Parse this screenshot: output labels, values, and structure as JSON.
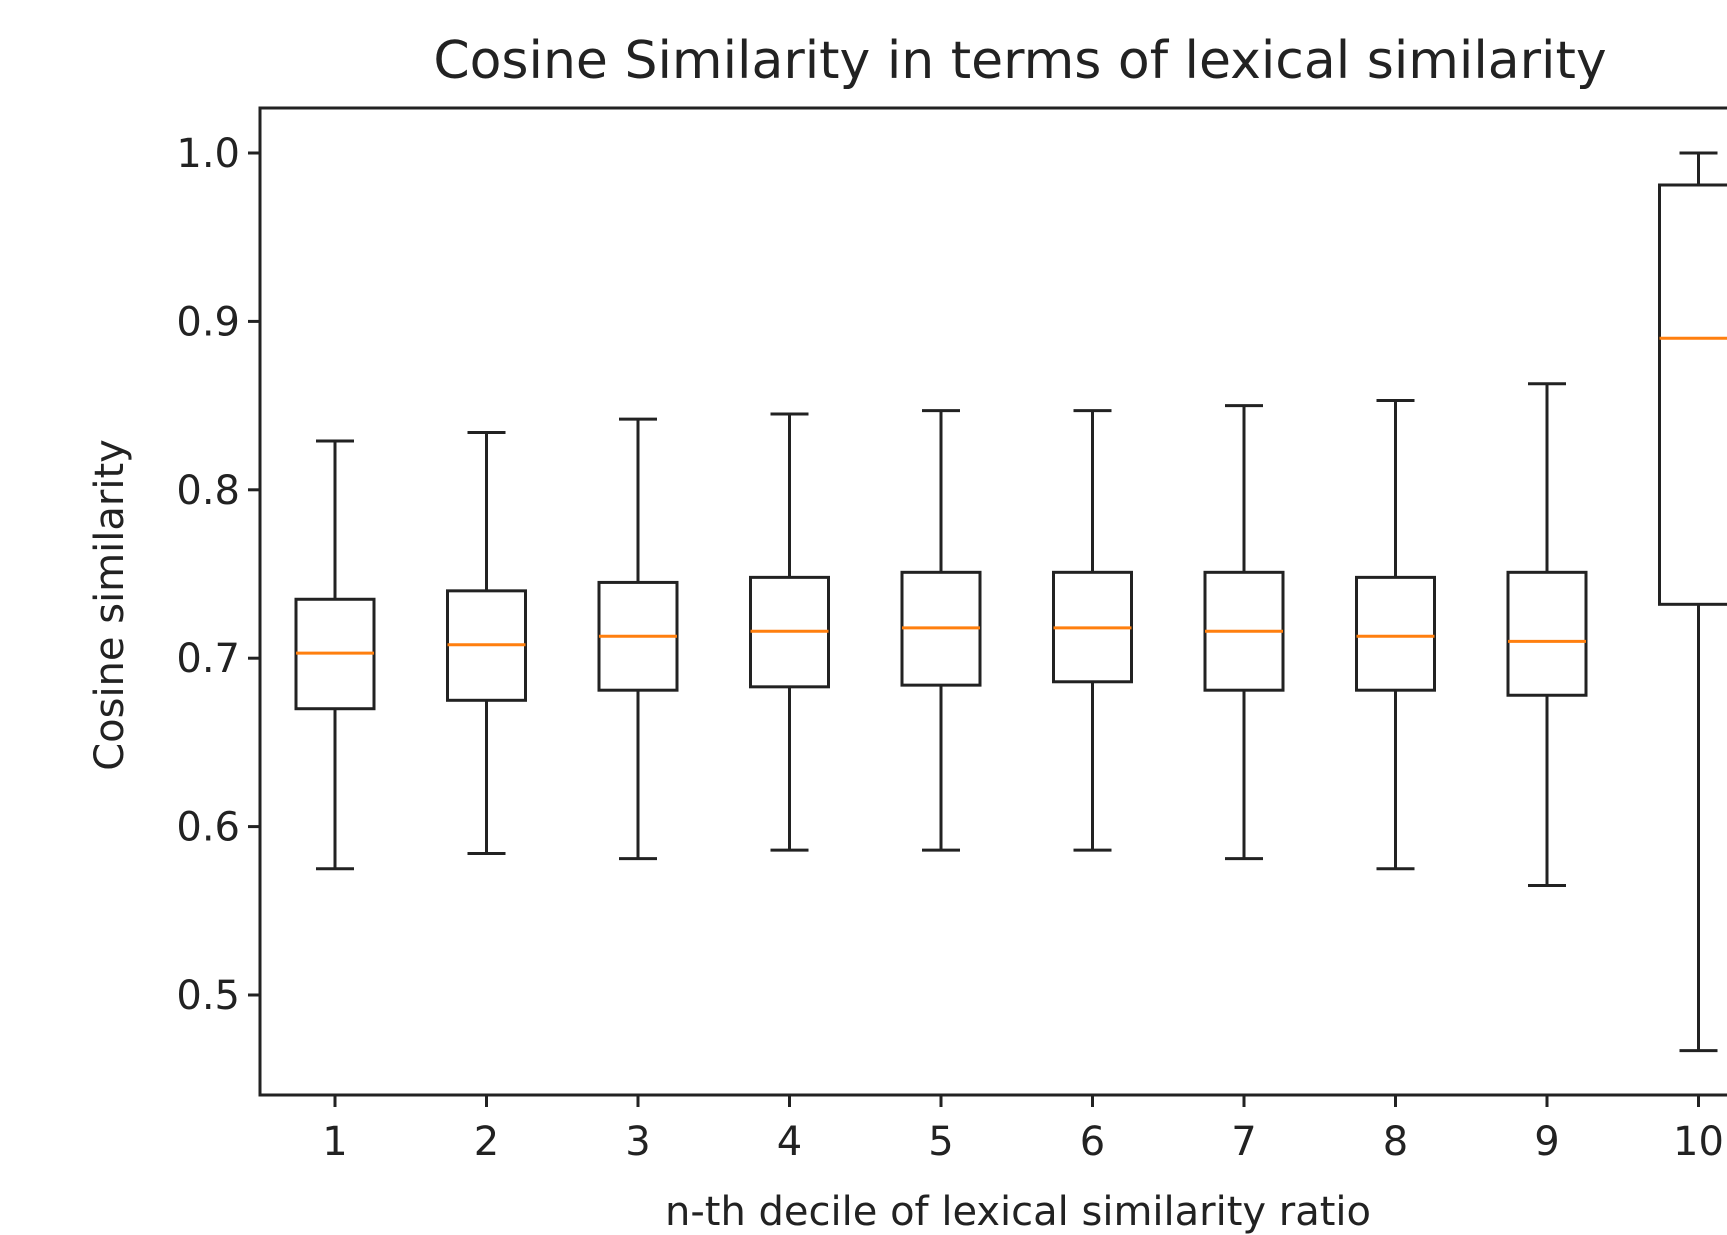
{
  "chart_data": {
    "type": "boxplot",
    "title": "Cosine Similarity in terms of lexical similarity",
    "xlabel": "n-th decile of lexical similarity ratio",
    "ylabel": "Cosine similarity",
    "categories": [
      "1",
      "2",
      "3",
      "4",
      "5",
      "6",
      "7",
      "8",
      "9",
      "10"
    ],
    "yticks": [
      "0.5",
      "0.6",
      "0.7",
      "0.8",
      "0.9",
      "1.0"
    ],
    "ylim": [
      0.44,
      1.03
    ],
    "grid": false,
    "boxes": [
      {
        "category": "1",
        "whisker_low": 0.575,
        "q1": 0.67,
        "median": 0.703,
        "q3": 0.735,
        "whisker_high": 0.829
      },
      {
        "category": "2",
        "whisker_low": 0.584,
        "q1": 0.675,
        "median": 0.708,
        "q3": 0.74,
        "whisker_high": 0.834
      },
      {
        "category": "3",
        "whisker_low": 0.581,
        "q1": 0.681,
        "median": 0.713,
        "q3": 0.745,
        "whisker_high": 0.842
      },
      {
        "category": "4",
        "whisker_low": 0.586,
        "q1": 0.683,
        "median": 0.716,
        "q3": 0.748,
        "whisker_high": 0.845
      },
      {
        "category": "5",
        "whisker_low": 0.586,
        "q1": 0.684,
        "median": 0.718,
        "q3": 0.751,
        "whisker_high": 0.847
      },
      {
        "category": "6",
        "whisker_low": 0.586,
        "q1": 0.686,
        "median": 0.718,
        "q3": 0.751,
        "whisker_high": 0.847
      },
      {
        "category": "7",
        "whisker_low": 0.581,
        "q1": 0.681,
        "median": 0.716,
        "q3": 0.751,
        "whisker_high": 0.85
      },
      {
        "category": "8",
        "whisker_low": 0.575,
        "q1": 0.681,
        "median": 0.713,
        "q3": 0.748,
        "whisker_high": 0.853
      },
      {
        "category": "9",
        "whisker_low": 0.565,
        "q1": 0.678,
        "median": 0.71,
        "q3": 0.751,
        "whisker_high": 0.863
      },
      {
        "category": "10",
        "whisker_low": 0.467,
        "q1": 0.732,
        "median": 0.89,
        "q3": 0.981,
        "whisker_high": 1.0
      }
    ],
    "colors": {
      "box": "#222222",
      "median": "#ff7f0e",
      "axis": "#222222"
    }
  }
}
